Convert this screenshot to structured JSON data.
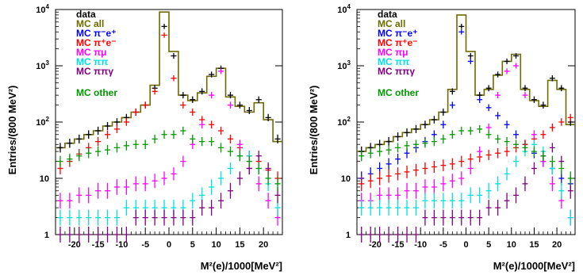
{
  "chart_data": [
    {
      "type": "line",
      "xlabel": "M²(e)/1000[MeV²]",
      "ylabel": "Entries/(800 MeV²)",
      "yscale": "log",
      "xlim": [
        -24,
        24
      ],
      "ylim": [
        1,
        10000
      ],
      "xticks": [
        -20,
        -15,
        -10,
        -5,
        0,
        5,
        10,
        15,
        20
      ],
      "yticks": [
        {
          "value": 1,
          "base": "1",
          "exp": ""
        },
        {
          "value": 10,
          "base": "10",
          "exp": ""
        },
        {
          "value": 100,
          "base": "10",
          "exp": "2"
        },
        {
          "value": 1000,
          "base": "10",
          "exp": "3"
        },
        {
          "value": 10000,
          "base": "10",
          "exp": "4"
        }
      ],
      "legend": [
        {
          "text": "data",
          "color": "#000000"
        },
        {
          "text": "MC all",
          "color": "#6b6b00"
        },
        {
          "text": "MC π⁻e⁺",
          "color": "#0000ff"
        },
        {
          "text": "MC π⁺e⁻",
          "color": "#ff0000"
        },
        {
          "text": "MC πμ",
          "color": "#ff00ff"
        },
        {
          "text": "MC ππ",
          "color": "#00e0e0"
        },
        {
          "text": "MC ππγ",
          "color": "#800080"
        },
        {
          "text": "MC other",
          "color": "#009900"
        }
      ],
      "legend_position": "top-left",
      "series": [
        {
          "name": "data",
          "color": "#000000",
          "style": "cross",
          "x": [
            -23,
            -21,
            -19,
            -17,
            -15,
            -13,
            -11,
            -9,
            -7,
            -5,
            -3,
            -1,
            1,
            3,
            5,
            7,
            9,
            11,
            13,
            15,
            17,
            19,
            21,
            23
          ],
          "y": [
            35,
            42,
            50,
            60,
            70,
            85,
            100,
            120,
            150,
            200,
            400,
            5000,
            1500,
            300,
            250,
            350,
            700,
            900,
            300,
            200,
            160,
            250,
            120,
            50
          ]
        },
        {
          "name": "MC all",
          "color": "#6b6b00",
          "style": "hist",
          "x": [
            -23,
            -21,
            -19,
            -17,
            -15,
            -13,
            -11,
            -9,
            -7,
            -5,
            -3,
            -1,
            1,
            3,
            5,
            7,
            9,
            11,
            13,
            15,
            17,
            19,
            21,
            23
          ],
          "y": [
            35,
            42,
            50,
            60,
            70,
            85,
            100,
            120,
            150,
            200,
            450,
            9000,
            1800,
            300,
            240,
            330,
            650,
            900,
            280,
            190,
            150,
            220,
            110,
            45
          ]
        },
        {
          "name": "MC π⁺e⁻",
          "color": "#ff0000",
          "style": "cross",
          "x": [
            -23,
            -21,
            -19,
            -17,
            -15,
            -13,
            -11,
            -9,
            -7,
            -5,
            -3,
            -1,
            1,
            3,
            5,
            7,
            9,
            11,
            13,
            15,
            17,
            19,
            21,
            23
          ],
          "y": [
            15,
            20,
            27,
            35,
            45,
            60,
            75,
            100,
            150,
            200,
            350,
            3500,
            600,
            200,
            150,
            110,
            90,
            70,
            50,
            35,
            25,
            20,
            14,
            10
          ]
        },
        {
          "name": "MC πμ",
          "color": "#ff00ff",
          "style": "cross",
          "x": [
            -23,
            -21,
            -19,
            -17,
            -15,
            -13,
            -11,
            -9,
            -7,
            -5,
            -3,
            -1,
            1,
            3,
            5,
            7,
            9,
            11,
            13,
            15,
            17,
            19,
            21,
            23
          ],
          "y": [
            4,
            4,
            5,
            5,
            6,
            6,
            7,
            7,
            8,
            8,
            9,
            10,
            12,
            20,
            40,
            90,
            300,
            800,
            200,
            40,
            15,
            8,
            4,
            2
          ]
        },
        {
          "name": "MC ππ",
          "color": "#00e0e0",
          "style": "cross",
          "x": [
            -23,
            -21,
            -19,
            -17,
            -15,
            -13,
            -11,
            -9,
            -7,
            -5,
            -3,
            -1,
            1,
            3,
            5,
            7,
            9,
            11,
            13,
            15,
            17,
            19,
            21,
            23
          ],
          "y": [
            2,
            2,
            2,
            2,
            2,
            2,
            2,
            3,
            3,
            3,
            3,
            3,
            3,
            3,
            4,
            5,
            7,
            10,
            15,
            25,
            25,
            15,
            8,
            3
          ]
        },
        {
          "name": "MC ππγ",
          "color": "#800080",
          "style": "cross",
          "x": [
            -23,
            -21,
            -19,
            -17,
            -15,
            -13,
            -11,
            -9,
            -7,
            -5,
            -3,
            -1,
            1,
            3,
            5,
            7,
            9,
            11,
            13,
            15,
            17,
            19,
            21,
            23
          ],
          "y": [
            1,
            1,
            1,
            1,
            1,
            1,
            1,
            1,
            2,
            2,
            2,
            2,
            2,
            2,
            2,
            3,
            3,
            4,
            6,
            10,
            15,
            25,
            15,
            5
          ]
        },
        {
          "name": "MC other",
          "color": "#009900",
          "style": "cross",
          "x": [
            -23,
            -21,
            -19,
            -17,
            -15,
            -13,
            -11,
            -9,
            -7,
            -5,
            -3,
            -1,
            1,
            3,
            5,
            7,
            9,
            11,
            13,
            15,
            17,
            19,
            21,
            23
          ],
          "y": [
            20,
            22,
            25,
            28,
            30,
            32,
            35,
            38,
            40,
            40,
            50,
            60,
            60,
            70,
            50,
            45,
            45,
            35,
            30,
            25,
            20,
            15,
            10,
            8
          ]
        }
      ]
    },
    {
      "type": "line",
      "xlabel": "M²(e)/1000[MeV²]",
      "ylabel": "Entries/(800 MeV²)",
      "yscale": "log",
      "xlim": [
        -24,
        24
      ],
      "ylim": [
        1,
        10000
      ],
      "xticks": [
        -20,
        -15,
        -10,
        -5,
        0,
        5,
        10,
        15,
        20
      ],
      "yticks": [
        {
          "value": 1,
          "base": "1",
          "exp": ""
        },
        {
          "value": 10,
          "base": "10",
          "exp": ""
        },
        {
          "value": 100,
          "base": "10",
          "exp": "2"
        },
        {
          "value": 1000,
          "base": "10",
          "exp": "3"
        },
        {
          "value": 10000,
          "base": "10",
          "exp": "4"
        }
      ],
      "legend": [
        {
          "text": "data",
          "color": "#000000"
        },
        {
          "text": "MC all",
          "color": "#6b6b00"
        },
        {
          "text": "MC π⁻e⁺",
          "color": "#0000ff"
        },
        {
          "text": "MC π⁺e⁻",
          "color": "#ff0000"
        },
        {
          "text": "MC πμ",
          "color": "#ff00ff"
        },
        {
          "text": "MC ππ",
          "color": "#00e0e0"
        },
        {
          "text": "MC ππγ",
          "color": "#800080"
        },
        {
          "text": "MC other",
          "color": "#009900"
        }
      ],
      "legend_position": "top-left",
      "series": [
        {
          "name": "data",
          "color": "#000000",
          "style": "cross",
          "x": [
            -23,
            -21,
            -19,
            -17,
            -15,
            -13,
            -11,
            -9,
            -7,
            -5,
            -3,
            -1,
            1,
            3,
            5,
            7,
            9,
            11,
            13,
            15,
            17,
            19,
            21,
            23
          ],
          "y": [
            30,
            35,
            40,
            45,
            55,
            65,
            75,
            90,
            110,
            150,
            350,
            5000,
            1500,
            300,
            400,
            700,
            1200,
            1500,
            400,
            250,
            200,
            600,
            400,
            100
          ]
        },
        {
          "name": "MC all",
          "color": "#6b6b00",
          "style": "hist",
          "x": [
            -23,
            -21,
            -19,
            -17,
            -15,
            -13,
            -11,
            -9,
            -7,
            -5,
            -3,
            -1,
            1,
            3,
            5,
            7,
            9,
            11,
            13,
            15,
            17,
            19,
            21,
            23
          ],
          "y": [
            30,
            35,
            40,
            45,
            55,
            65,
            75,
            90,
            110,
            150,
            380,
            8000,
            1800,
            300,
            380,
            680,
            1200,
            1600,
            380,
            240,
            190,
            550,
            380,
            90
          ]
        },
        {
          "name": "MC π⁻e⁺",
          "color": "#0000ff",
          "style": "cross",
          "x": [
            -23,
            -21,
            -19,
            -17,
            -15,
            -13,
            -11,
            -9,
            -7,
            -5,
            -3,
            -1,
            1,
            3,
            5,
            7,
            9,
            11,
            13,
            15,
            17,
            19,
            21,
            23
          ],
          "y": [
            10,
            12,
            15,
            18,
            22,
            28,
            35,
            45,
            60,
            90,
            200,
            4000,
            1200,
            250,
            180,
            130,
            90,
            60,
            40,
            28,
            20,
            15,
            10,
            8
          ]
        },
        {
          "name": "MC π⁺e⁻",
          "color": "#ff0000",
          "style": "cross",
          "x": [
            -23,
            -21,
            -19,
            -17,
            -15,
            -13,
            -11,
            -9,
            -7,
            -5,
            -3,
            -1,
            1,
            3,
            5,
            7,
            9,
            11,
            13,
            15,
            17,
            19,
            21,
            23
          ],
          "y": [
            8,
            9,
            10,
            11,
            12,
            13,
            14,
            15,
            16,
            17,
            18,
            20,
            22,
            24,
            26,
            28,
            30,
            35,
            40,
            50,
            60,
            80,
            100,
            120
          ]
        },
        {
          "name": "MC πμ",
          "color": "#ff00ff",
          "style": "cross",
          "x": [
            -23,
            -21,
            -19,
            -17,
            -15,
            -13,
            -11,
            -9,
            -7,
            -5,
            -3,
            -1,
            1,
            3,
            5,
            7,
            9,
            11,
            13,
            15,
            17,
            19,
            21,
            23
          ],
          "y": [
            4,
            4,
            5,
            5,
            5,
            6,
            6,
            7,
            7,
            8,
            9,
            10,
            15,
            30,
            80,
            300,
            800,
            1000,
            300,
            60,
            20,
            8,
            4,
            2
          ]
        },
        {
          "name": "MC ππ",
          "color": "#00e0e0",
          "style": "cross",
          "x": [
            -23,
            -21,
            -19,
            -17,
            -15,
            -13,
            -11,
            -9,
            -7,
            -5,
            -3,
            -1,
            1,
            3,
            5,
            7,
            9,
            11,
            13,
            15,
            17,
            19,
            21,
            23
          ],
          "y": [
            3,
            3,
            3,
            3,
            3,
            3,
            3,
            4,
            4,
            4,
            4,
            4,
            5,
            5,
            6,
            8,
            12,
            20,
            30,
            40,
            30,
            15,
            6,
            2
          ]
        },
        {
          "name": "MC ππγ",
          "color": "#800080",
          "style": "cross",
          "x": [
            -23,
            -21,
            -19,
            -17,
            -15,
            -13,
            -11,
            -9,
            -7,
            -5,
            -3,
            -1,
            1,
            3,
            5,
            7,
            9,
            11,
            13,
            15,
            17,
            19,
            21,
            23
          ],
          "y": [
            1,
            1,
            1,
            1,
            1,
            1,
            1,
            2,
            2,
            2,
            2,
            2,
            2,
            2,
            3,
            3,
            4,
            5,
            8,
            15,
            25,
            35,
            20,
            6
          ]
        },
        {
          "name": "MC other",
          "color": "#009900",
          "style": "cross",
          "x": [
            -23,
            -21,
            -19,
            -17,
            -15,
            -13,
            -11,
            -9,
            -7,
            -5,
            -3,
            -1,
            1,
            3,
            5,
            7,
            9,
            11,
            13,
            15,
            17,
            19,
            21,
            23
          ],
          "y": [
            25,
            28,
            30,
            32,
            35,
            38,
            40,
            42,
            45,
            50,
            60,
            70,
            70,
            75,
            60,
            50,
            45,
            40,
            35,
            30,
            25,
            20,
            15,
            10
          ]
        }
      ]
    }
  ]
}
